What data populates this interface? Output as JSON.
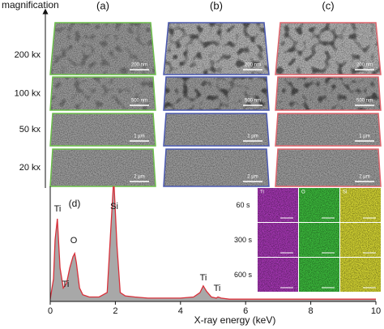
{
  "sem": {
    "axis_label": "magnification",
    "columns": [
      {
        "label": "(a)",
        "color": "#6cbf4a"
      },
      {
        "label": "(b)",
        "color": "#4a58b0"
      },
      {
        "label": "(c)",
        "color": "#e0646c"
      }
    ],
    "rows": [
      {
        "magnification": "200 kx",
        "scale_bar": "200 nm"
      },
      {
        "magnification": "100 kx",
        "scale_bar": "500 nm"
      },
      {
        "magnification": "50 kx",
        "scale_bar": "1 µm"
      },
      {
        "magnification": "20 kx",
        "scale_bar": "2 µm"
      }
    ]
  },
  "chart_data": {
    "type": "line",
    "label": "(d)",
    "x_label": "X-ray energy (keV)",
    "x": [
      0,
      0.1,
      0.15,
      0.22,
      0.3,
      0.4,
      0.5,
      0.6,
      0.7,
      0.75,
      0.8,
      0.9,
      1.0,
      1.2,
      1.5,
      1.75,
      1.85,
      1.95,
      2.05,
      2.15,
      2.3,
      2.6,
      3,
      3.5,
      4,
      4.4,
      4.6,
      4.7,
      4.8,
      4.95,
      5.1,
      5.15,
      5.25,
      5.5,
      6,
      7,
      8,
      9,
      10
    ],
    "values": [
      2,
      20,
      55,
      74,
      30,
      12,
      16,
      30,
      40,
      43,
      35,
      12,
      6,
      4,
      4,
      8,
      60,
      110,
      50,
      8,
      5,
      4,
      3,
      3,
      3,
      4,
      8,
      14,
      9,
      4,
      3,
      4,
      3,
      2,
      2,
      2,
      2,
      2,
      2
    ],
    "color": "#d8303a",
    "fill": "#a8a8a8",
    "xlim": [
      0,
      10
    ],
    "ylim": [
      0,
      100
    ],
    "xticks": [
      0,
      2,
      4,
      6,
      8,
      10
    ],
    "annotations": [
      "Ti",
      "O",
      "Ti",
      "Si",
      "Ti",
      "Ti"
    ],
    "inset": {
      "elements": [
        {
          "label": "Ti",
          "color": "#a236b0"
        },
        {
          "label": "O",
          "color": "#3cb83c"
        },
        {
          "label": "Si",
          "color": "#d2d232"
        }
      ],
      "times": [
        "60 s",
        "300 s",
        "600 s"
      ]
    }
  }
}
